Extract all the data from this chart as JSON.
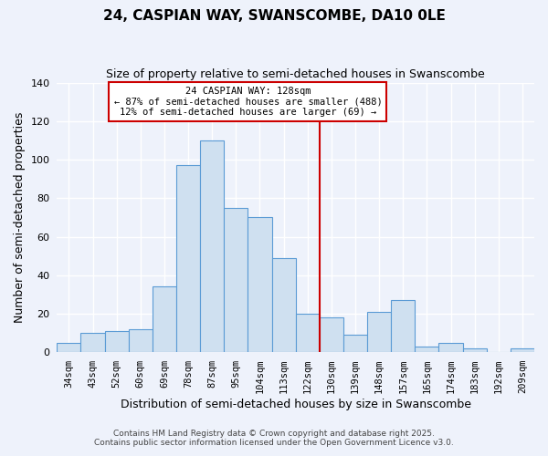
{
  "title": "24, CASPIAN WAY, SWANSCOMBE, DA10 0LE",
  "subtitle": "Size of property relative to semi-detached houses in Swanscombe",
  "xlabel": "Distribution of semi-detached houses by size in Swanscombe",
  "ylabel": "Number of semi-detached properties",
  "bin_labels": [
    "34sqm",
    "43sqm",
    "52sqm",
    "60sqm",
    "69sqm",
    "78sqm",
    "87sqm",
    "95sqm",
    "104sqm",
    "113sqm",
    "122sqm",
    "130sqm",
    "139sqm",
    "148sqm",
    "157sqm",
    "165sqm",
    "174sqm",
    "183sqm",
    "192sqm",
    "209sqm"
  ],
  "bar_heights": [
    5,
    10,
    11,
    12,
    34,
    97,
    110,
    75,
    70,
    49,
    20,
    18,
    9,
    21,
    27,
    3,
    5,
    2,
    0,
    2
  ],
  "bar_color": "#cfe0f0",
  "bar_edgecolor": "#5b9bd5",
  "background_color": "#eef2fb",
  "grid_color": "#ffffff",
  "ylim": [
    0,
    140
  ],
  "yticks": [
    0,
    20,
    40,
    60,
    80,
    100,
    120,
    140
  ],
  "vline_x_index": 11,
  "vline_color": "#cc0000",
  "annotation_title": "24 CASPIAN WAY: 128sqm",
  "annotation_line1": "← 87% of semi-detached houses are smaller (488)",
  "annotation_line2": "12% of semi-detached houses are larger (69) →",
  "annotation_box_edgecolor": "#cc0000",
  "footnote1": "Contains HM Land Registry data © Crown copyright and database right 2025.",
  "footnote2": "Contains public sector information licensed under the Open Government Licence v3.0."
}
